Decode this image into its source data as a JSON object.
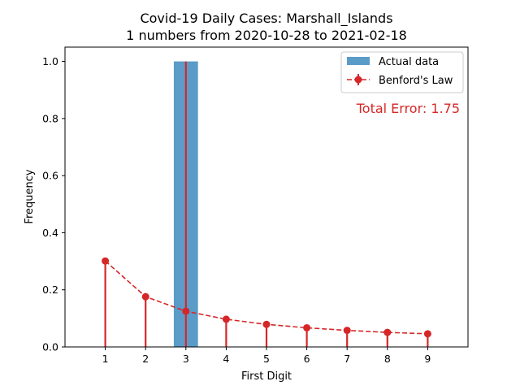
{
  "chart_data": {
    "type": "bar",
    "title_line1": "Covid-19 Daily Cases: Marshall_Islands",
    "title_line2": "1 numbers from 2020-10-28 to 2021-02-18",
    "xlabel": "First Digit",
    "ylabel": "Frequency",
    "categories": [
      "1",
      "2",
      "3",
      "4",
      "5",
      "6",
      "7",
      "8",
      "9"
    ],
    "ylim": [
      0,
      1.05
    ],
    "yticks": [
      "0.0",
      "0.2",
      "0.4",
      "0.6",
      "0.8",
      "1.0"
    ],
    "series": [
      {
        "name": "Actual data",
        "type": "bar",
        "color": "#5b9bc8",
        "values": [
          0,
          0,
          1.0,
          0,
          0,
          0,
          0,
          0,
          0
        ]
      },
      {
        "name": "Benford's Law",
        "type": "line",
        "color": "#d62728",
        "values": [
          0.301,
          0.176,
          0.125,
          0.097,
          0.079,
          0.067,
          0.058,
          0.051,
          0.046
        ]
      }
    ],
    "annotation": "Total Error: 1.75",
    "legend_position": "top-right",
    "grid": false
  }
}
